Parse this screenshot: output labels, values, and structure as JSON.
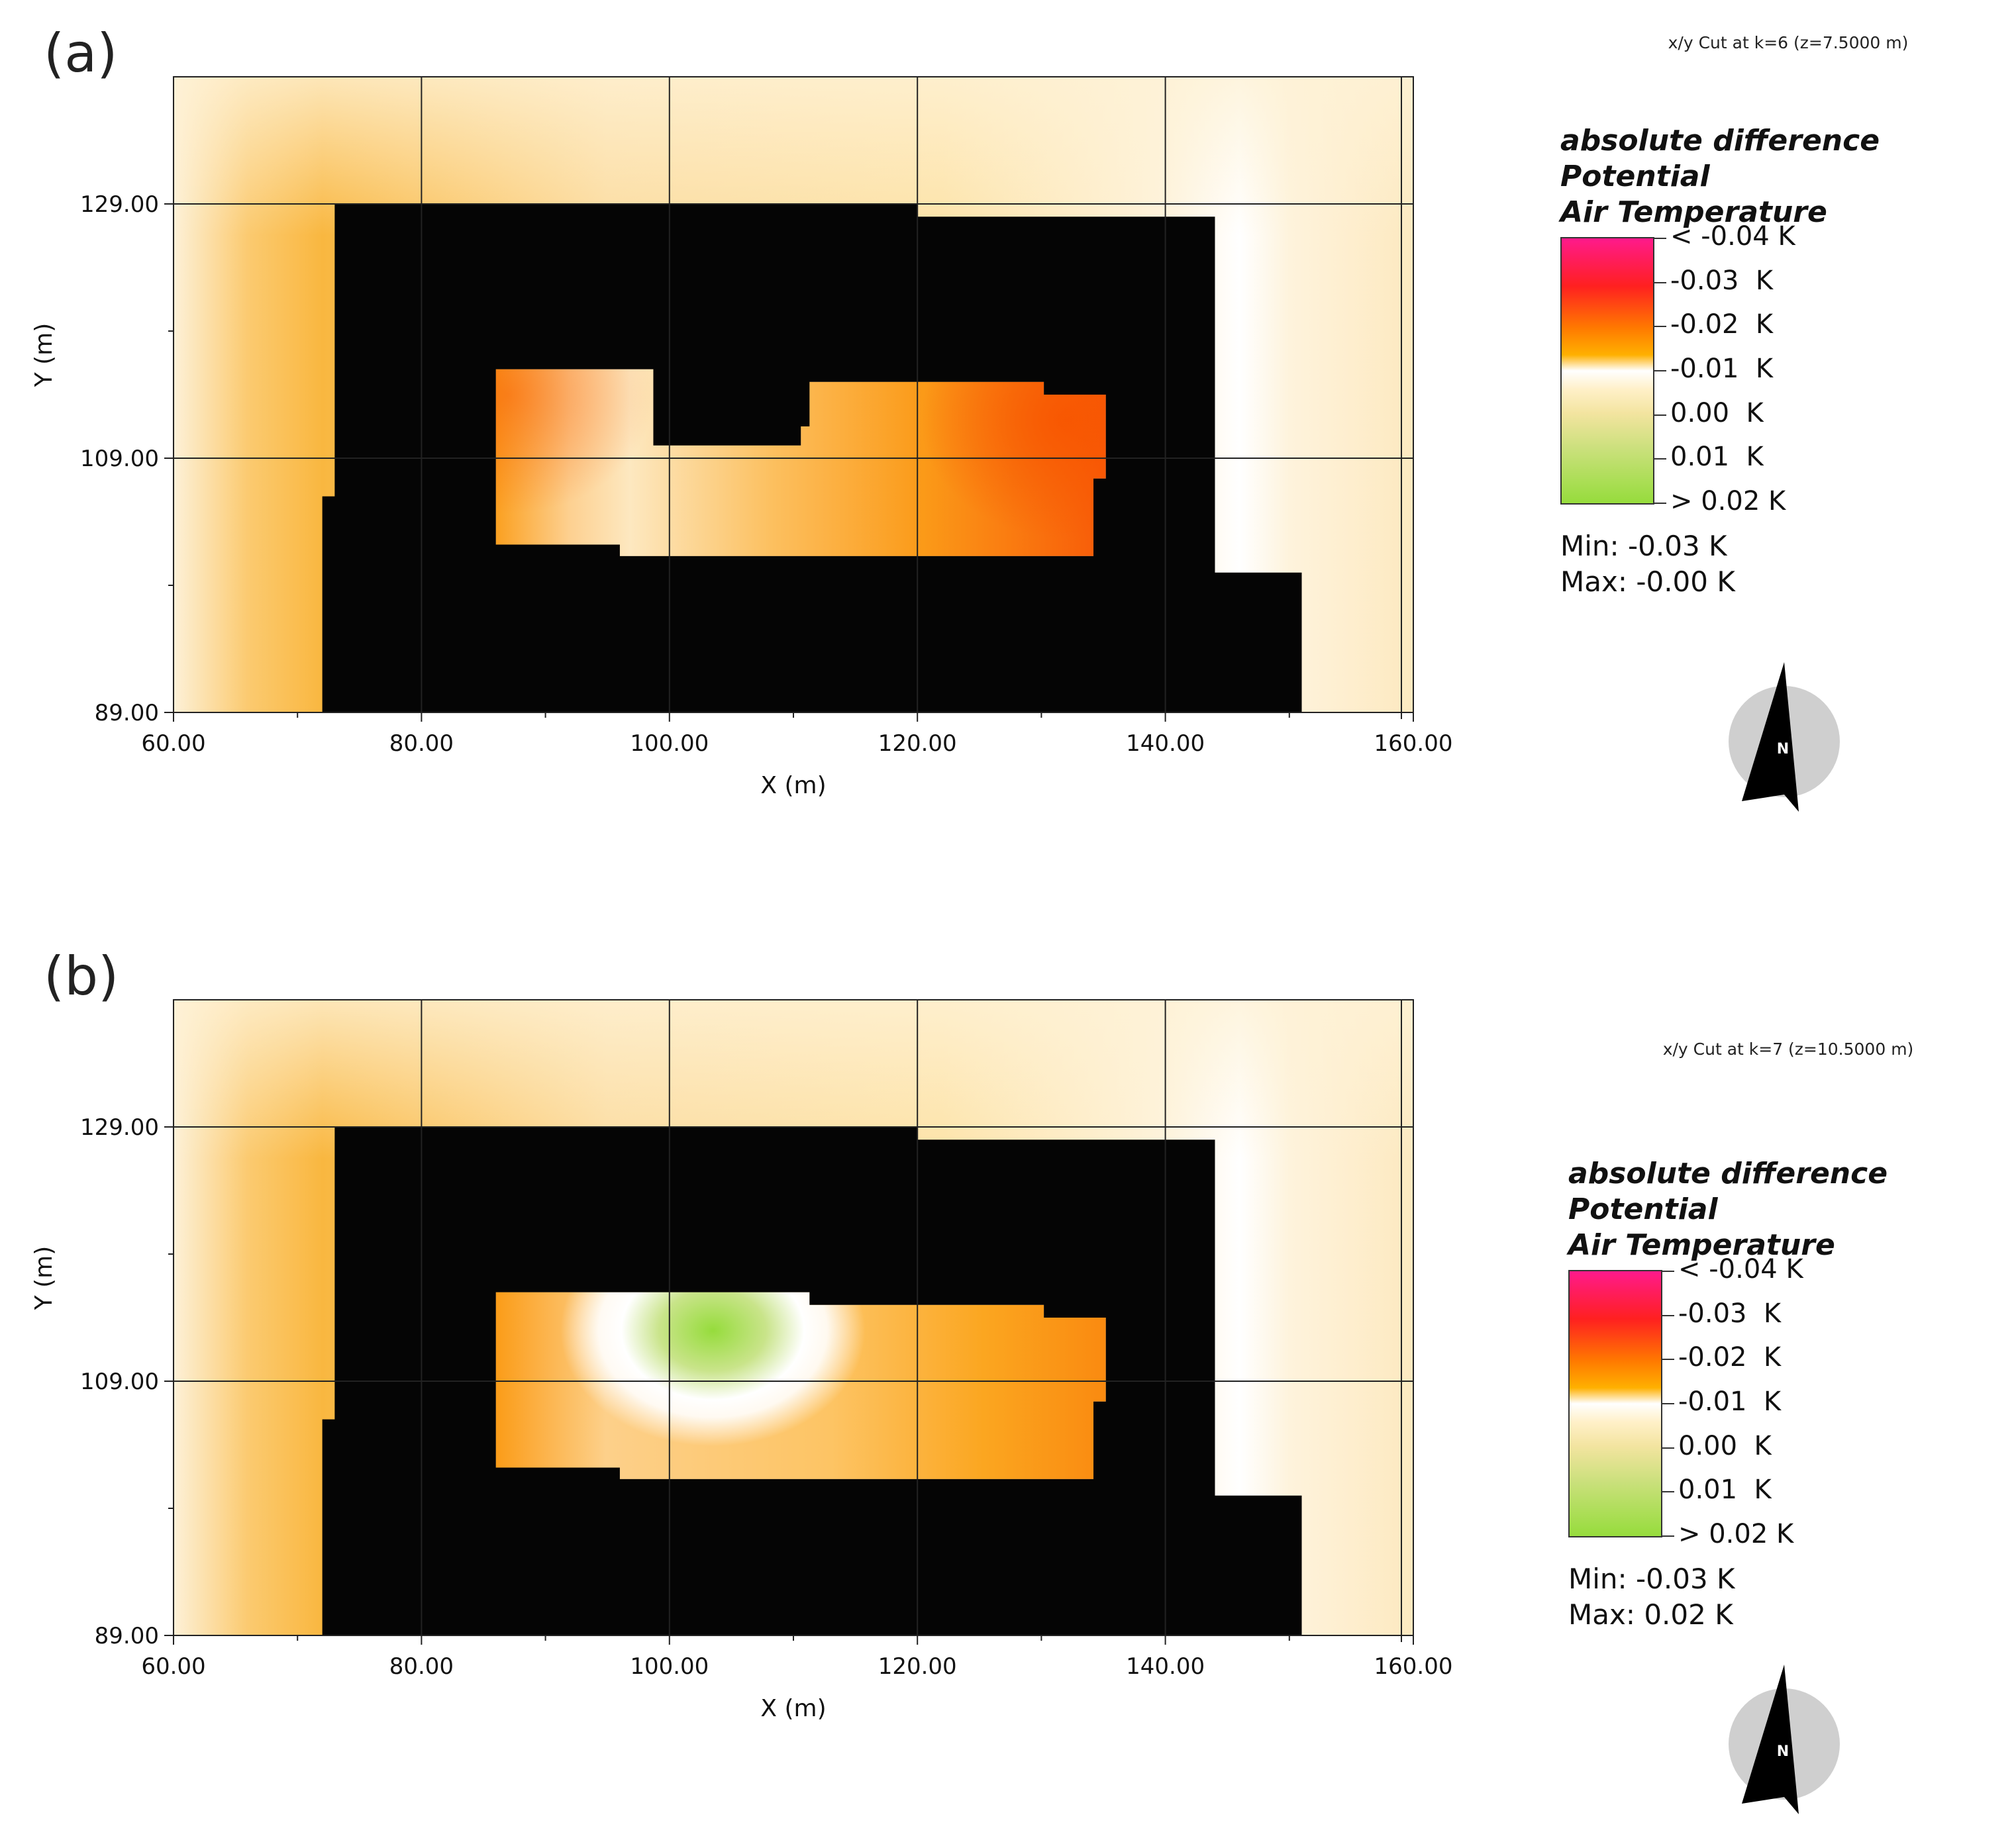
{
  "panels": [
    {
      "id": "a",
      "label": "(a)",
      "cut_label": "x/y Cut at k=6 (z=7.5000 m)",
      "legend": {
        "title_line1": "absolute difference Potential",
        "title_line2": "Air Temperature",
        "ticks": [
          "< -0.04 K",
          "-0.03  K",
          "-0.02  K",
          "-0.01  K",
          "0.00  K",
          "0.01  K",
          "> 0.02 K"
        ],
        "min": "Min: -0.03 K",
        "max": "Max: -0.00 K"
      },
      "north_label": "N"
    },
    {
      "id": "b",
      "label": "(b)",
      "cut_label": "x/y Cut at k=7 (z=10.5000 m)",
      "legend": {
        "title_line1": "absolute difference Potential",
        "title_line2": "Air Temperature",
        "ticks": [
          "< -0.04 K",
          "-0.03  K",
          "-0.02  K",
          "-0.01  K",
          "0.00  K",
          "0.01  K",
          "> 0.02 K"
        ],
        "min": "Min: -0.03 K",
        "max": "Max: 0.02 K"
      },
      "north_label": "N"
    }
  ],
  "chart_data": [
    {
      "type": "heatmap",
      "title": "x/y Cut at k=6 (z=7.5000 m)",
      "xlabel": "X (m)",
      "ylabel": "Y (m)",
      "xlim": [
        60,
        160
      ],
      "ylim": [
        89,
        139
      ],
      "x_ticks": [
        "60.00",
        "80.00",
        "100.00",
        "120.00",
        "140.00",
        "160.00"
      ],
      "x_tick_values": [
        60,
        80,
        100,
        120,
        140,
        160
      ],
      "y_ticks": [
        "89.00",
        "109.00",
        "129.00"
      ],
      "y_tick_values": [
        89,
        109,
        129
      ],
      "colorbar_range": [
        -0.04,
        0.02
      ],
      "value_min": -0.03,
      "value_max": -0.0,
      "building_outline": [
        [
          73,
          129
        ],
        [
          120,
          129
        ],
        [
          120,
          128
        ],
        [
          144,
          128
        ],
        [
          144,
          100
        ],
        [
          151,
          100
        ],
        [
          151,
          89
        ],
        [
          72,
          89
        ],
        [
          72,
          106
        ],
        [
          73,
          106
        ]
      ],
      "courtyard_outline": [
        [
          86,
          116
        ],
        [
          98.7,
          116
        ],
        [
          98.7,
          110
        ],
        [
          110.6,
          110
        ],
        [
          110.6,
          111.5
        ],
        [
          111.3,
          111.5
        ],
        [
          111.3,
          115
        ],
        [
          130.2,
          115
        ],
        [
          130.2,
          114
        ],
        [
          135.2,
          114
        ],
        [
          135.2,
          107.4
        ],
        [
          134.2,
          107.4
        ],
        [
          134.2,
          101.3
        ],
        [
          96,
          101.3
        ],
        [
          96,
          102.2
        ],
        [
          86,
          102.2
        ]
      ],
      "hot_spots": [
        {
          "x": 132,
          "y": 112,
          "value": -0.025
        },
        {
          "x": 87,
          "y": 114,
          "value": -0.018
        }
      ]
    },
    {
      "type": "heatmap",
      "title": "x/y Cut at k=7 (z=10.5000 m)",
      "xlabel": "X (m)",
      "ylabel": "Y (m)",
      "xlim": [
        60,
        160
      ],
      "ylim": [
        89,
        139
      ],
      "x_ticks": [
        "60.00",
        "80.00",
        "100.00",
        "120.00",
        "140.00",
        "160.00"
      ],
      "x_tick_values": [
        60,
        80,
        100,
        120,
        140,
        160
      ],
      "y_ticks": [
        "89.00",
        "109.00",
        "129.00"
      ],
      "y_tick_values": [
        89,
        109,
        129
      ],
      "colorbar_range": [
        -0.04,
        0.02
      ],
      "value_min": -0.03,
      "value_max": 0.02,
      "building_outline": [
        [
          73,
          129
        ],
        [
          120,
          129
        ],
        [
          120,
          128
        ],
        [
          144,
          128
        ],
        [
          144,
          100
        ],
        [
          151,
          100
        ],
        [
          151,
          89
        ],
        [
          72,
          89
        ],
        [
          72,
          106
        ],
        [
          73,
          106
        ]
      ],
      "courtyard_outline": [
        [
          86,
          116
        ],
        [
          111.3,
          116
        ],
        [
          111.3,
          115
        ],
        [
          130.2,
          115
        ],
        [
          130.2,
          114
        ],
        [
          135.2,
          114
        ],
        [
          135.2,
          107.4
        ],
        [
          134.2,
          107.4
        ],
        [
          134.2,
          101.3
        ],
        [
          96,
          101.3
        ],
        [
          96,
          102.2
        ],
        [
          86,
          102.2
        ]
      ],
      "cool_spot": {
        "x": 103.5,
        "y": 113,
        "value": 0.02
      }
    }
  ]
}
